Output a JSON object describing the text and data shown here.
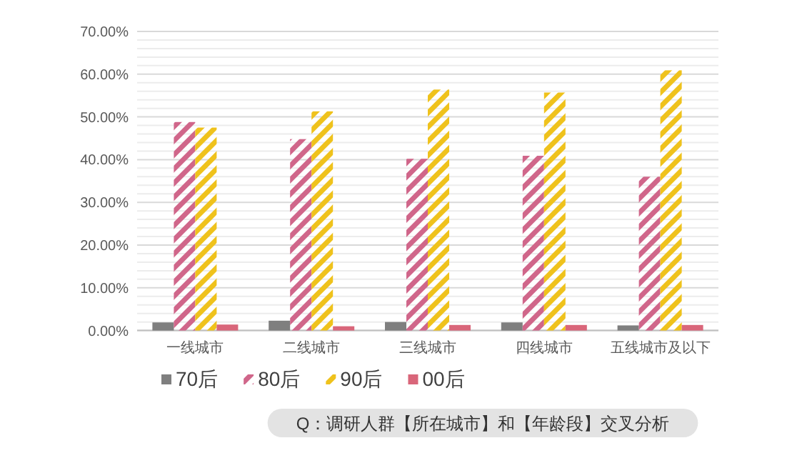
{
  "chart_data": {
    "type": "bar",
    "categories": [
      "一线城市",
      "二线城市",
      "三线城市",
      "四线城市",
      "五线城市及以下"
    ],
    "series": [
      {
        "name": "70后",
        "color": "#7f7f7f",
        "values": [
          1.9,
          2.3,
          2.0,
          1.9,
          1.2
        ]
      },
      {
        "name": "80后",
        "color": "#d0668a",
        "values": [
          48.8,
          44.8,
          40.2,
          40.9,
          36.0
        ]
      },
      {
        "name": "90后",
        "color": "#efc21c",
        "values": [
          47.5,
          51.3,
          56.4,
          55.7,
          60.9
        ]
      },
      {
        "name": "00后",
        "color": "#d9667a",
        "values": [
          1.4,
          1.0,
          1.3,
          1.3,
          1.3
        ]
      }
    ],
    "ylim": [
      0,
      70
    ],
    "yticks": [
      {
        "value": 0,
        "label": "0.00%"
      },
      {
        "value": 2,
        "label": null
      },
      {
        "value": 4,
        "label": null
      },
      {
        "value": 6,
        "label": null
      },
      {
        "value": 8,
        "label": null
      },
      {
        "value": 10,
        "label": "10.00%"
      },
      {
        "value": 12,
        "label": null
      },
      {
        "value": 14,
        "label": null
      },
      {
        "value": 16,
        "label": null
      },
      {
        "value": 18,
        "label": null
      },
      {
        "value": 20,
        "label": "20.00%"
      },
      {
        "value": 22,
        "label": null
      },
      {
        "value": 24,
        "label": null
      },
      {
        "value": 26,
        "label": null
      },
      {
        "value": 28,
        "label": null
      },
      {
        "value": 30,
        "label": "30.00%"
      },
      {
        "value": 32,
        "label": null
      },
      {
        "value": 34,
        "label": null
      },
      {
        "value": 36,
        "label": null
      },
      {
        "value": 38,
        "label": null
      },
      {
        "value": 40,
        "label": "40.00%"
      },
      {
        "value": 42,
        "label": null
      },
      {
        "value": 44,
        "label": null
      },
      {
        "value": 46,
        "label": null
      },
      {
        "value": 48,
        "label": null
      },
      {
        "value": 50,
        "label": "50.00%"
      },
      {
        "value": 52,
        "label": null
      },
      {
        "value": 54,
        "label": null
      },
      {
        "value": 56,
        "label": null
      },
      {
        "value": 58,
        "label": null
      },
      {
        "value": 60,
        "label": "60.00%"
      },
      {
        "value": 62,
        "label": null
      },
      {
        "value": 64,
        "label": null
      },
      {
        "value": 66,
        "label": null
      },
      {
        "value": 68,
        "label": null
      },
      {
        "value": 70,
        "label": "70.00%"
      }
    ],
    "grid": "y",
    "legend": "bottom",
    "annotations": [
      "Q：调研人群【所在城市】和【年龄段】交叉分析"
    ]
  }
}
